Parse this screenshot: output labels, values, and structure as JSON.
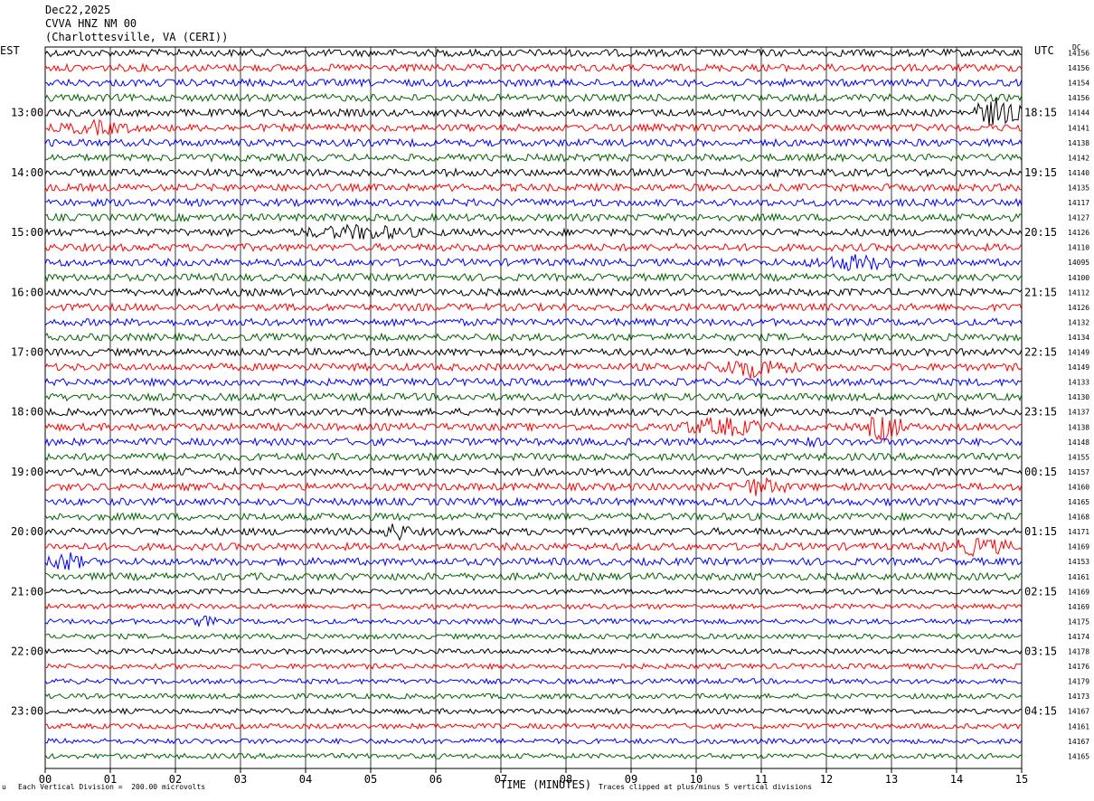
{
  "header": {
    "date": "Dec22,2025",
    "station": "CVVA HNZ NM 00",
    "location": "(Charlottesville, VA (CERI))"
  },
  "left_tz": "EST",
  "right_tz": "UTC",
  "dc_label": "DC",
  "footer": {
    "scale": "Each Vertical Division =  200.00 microvolts",
    "clip": "Traces clipped at plus/minus 5 vertical divisions",
    "corner": "u"
  },
  "colors": {
    "trace_cycle": [
      "#000000",
      "#ff0000",
      "#0000ff",
      "#006400"
    ],
    "grid": "#000000"
  },
  "chart_data": {
    "type": "line",
    "title": "CVVA HNZ NM 00",
    "xlabel": "TIME (MINUTES)",
    "xlim": [
      0,
      15
    ],
    "x_ticks": [
      "00",
      "01",
      "02",
      "03",
      "04",
      "05",
      "06",
      "07",
      "08",
      "09",
      "10",
      "11",
      "12",
      "13",
      "14",
      "15"
    ],
    "left_hour_labels": [
      {
        "row": 4,
        "label": "13:00"
      },
      {
        "row": 8,
        "label": "14:00"
      },
      {
        "row": 12,
        "label": "15:00"
      },
      {
        "row": 16,
        "label": "16:00"
      },
      {
        "row": 20,
        "label": "17:00"
      },
      {
        "row": 24,
        "label": "18:00"
      },
      {
        "row": 28,
        "label": "19:00"
      },
      {
        "row": 32,
        "label": "20:00"
      },
      {
        "row": 36,
        "label": "21:00"
      },
      {
        "row": 40,
        "label": "22:00"
      },
      {
        "row": 44,
        "label": "23:00"
      }
    ],
    "right_hour_labels": [
      {
        "row": 4,
        "label": "18:15"
      },
      {
        "row": 8,
        "label": "19:15"
      },
      {
        "row": 12,
        "label": "20:15"
      },
      {
        "row": 16,
        "label": "21:15"
      },
      {
        "row": 20,
        "label": "22:15"
      },
      {
        "row": 24,
        "label": "23:15"
      },
      {
        "row": 28,
        "label": "00:15"
      },
      {
        "row": 32,
        "label": "01:15"
      },
      {
        "row": 36,
        "label": "02:15"
      },
      {
        "row": 40,
        "label": "03:15"
      },
      {
        "row": 44,
        "label": "04:15"
      }
    ],
    "dc_offsets": [
      "14156",
      "14156",
      "14154",
      "14156",
      "14144",
      "14141",
      "14138",
      "14142",
      "14140",
      "14135",
      "14117",
      "14127",
      "14126",
      "14110",
      "14095",
      "14100",
      "14112",
      "14126",
      "14132",
      "14134",
      "14149",
      "14149",
      "14133",
      "14130",
      "14137",
      "14138",
      "14148",
      "14155",
      "14157",
      "14160",
      "14165",
      "14168",
      "14171",
      "14169",
      "14153",
      "14161",
      "14169",
      "14169",
      "14175",
      "14174",
      "14178",
      "14176",
      "14179",
      "14173",
      "14167",
      "14161",
      "14167",
      "14165"
    ],
    "events": [
      {
        "row": 4,
        "start_min": 14.2,
        "end_min": 15.0,
        "amp": 5.5
      },
      {
        "row": 5,
        "start_min": 0.0,
        "end_min": 1.6,
        "amp": 2.8
      },
      {
        "row": 12,
        "start_min": 3.7,
        "end_min": 6.0,
        "amp": 3.0
      },
      {
        "row": 14,
        "start_min": 11.6,
        "end_min": 13.3,
        "amp": 3.2
      },
      {
        "row": 21,
        "start_min": 10.1,
        "end_min": 11.6,
        "amp": 4.0
      },
      {
        "row": 25,
        "start_min": 9.6,
        "end_min": 11.2,
        "amp": 3.8
      },
      {
        "row": 25,
        "start_min": 12.6,
        "end_min": 13.2,
        "amp": 6.0
      },
      {
        "row": 26,
        "start_min": 11.4,
        "end_min": 12.1,
        "amp": 2.0
      },
      {
        "row": 29,
        "start_min": 10.4,
        "end_min": 11.5,
        "amp": 3.6
      },
      {
        "row": 32,
        "start_min": 5.2,
        "end_min": 5.6,
        "amp": 4.0
      },
      {
        "row": 33,
        "start_min": 13.7,
        "end_min": 15.0,
        "amp": 3.6
      },
      {
        "row": 34,
        "start_min": 0.0,
        "end_min": 0.6,
        "amp": 4.2
      },
      {
        "row": 38,
        "start_min": 2.2,
        "end_min": 2.7,
        "amp": 2.2
      }
    ]
  }
}
